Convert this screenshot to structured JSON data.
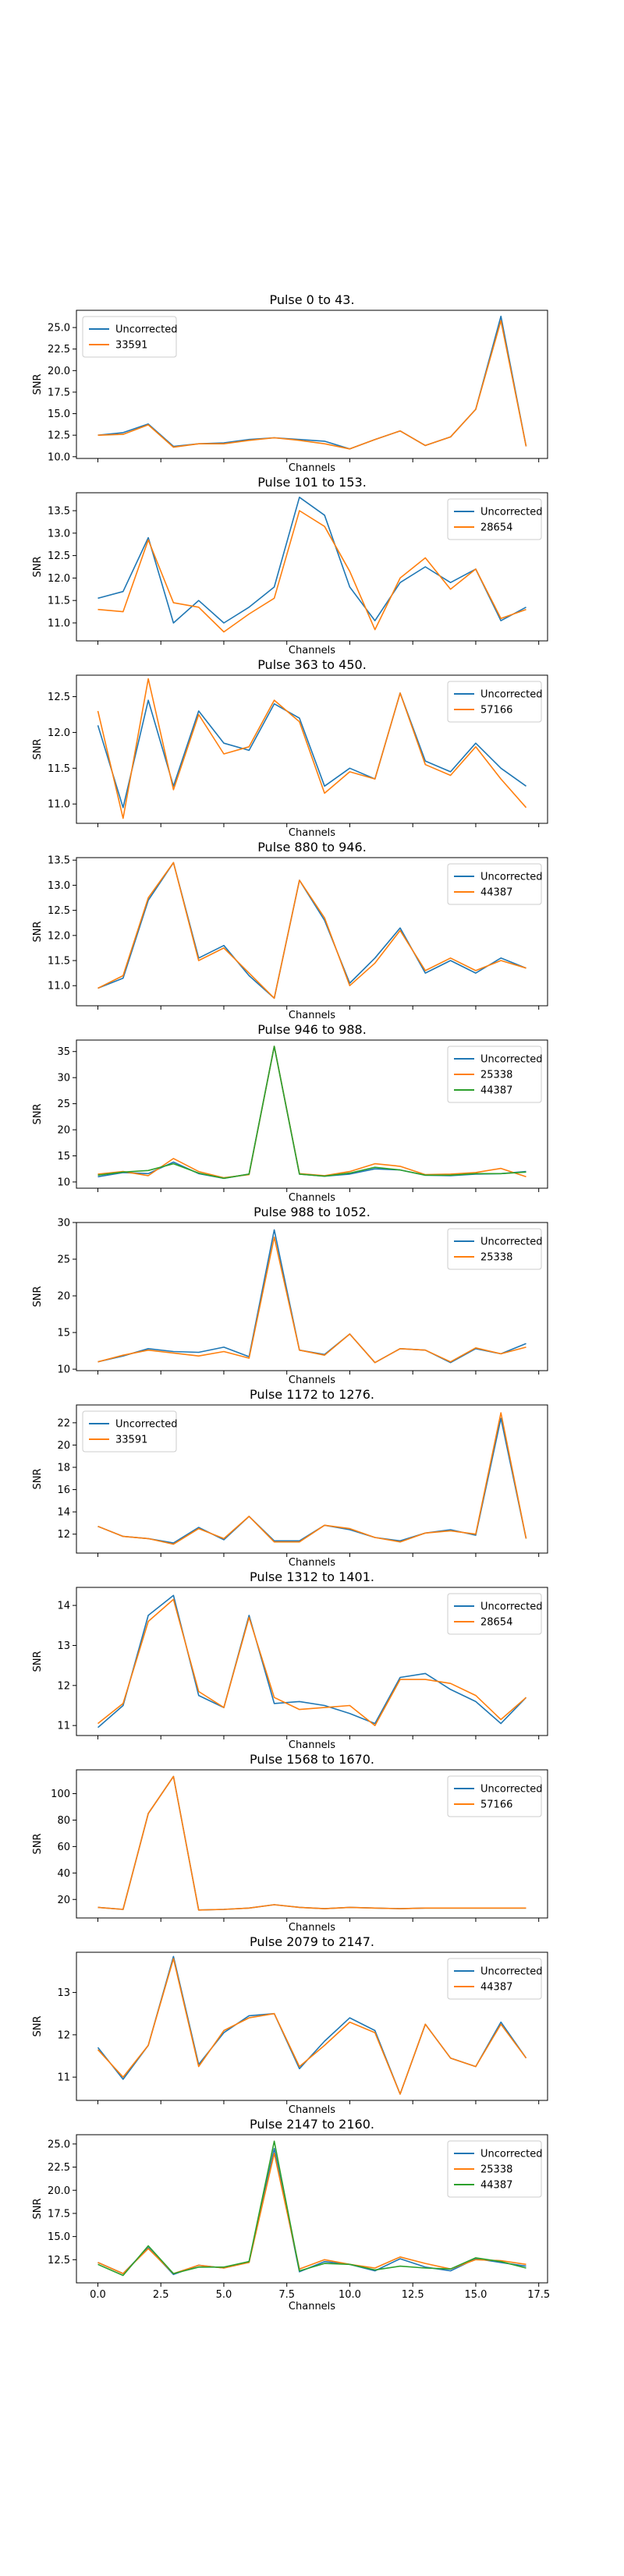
{
  "colors": {
    "uncorrected": "#1f77b4",
    "orange": "#ff7f0e",
    "green": "#2ca02c"
  },
  "chart_data": [
    {
      "type": "line",
      "title": "Pulse 0 to 43.",
      "xlabel": "Channels",
      "ylabel": "SNR",
      "xlim": [
        -0.85,
        17.85
      ],
      "ylim": [
        9.8,
        27.0
      ],
      "yticks": [
        10.0,
        12.5,
        15.0,
        17.5,
        20.0,
        22.5,
        25.0
      ],
      "ytick_labels": [
        "10.0",
        "12.5",
        "15.0",
        "17.5",
        "20.0",
        "22.5",
        "25.0"
      ],
      "xticks": [],
      "xtick_labels": [],
      "legend_position": "upper-left",
      "x": [
        0,
        1,
        2,
        3,
        4,
        5,
        6,
        7,
        8,
        9,
        10,
        11,
        12,
        13,
        14,
        15,
        16,
        17
      ],
      "series": [
        {
          "name": "Uncorrected",
          "color": "#1f77b4",
          "values": [
            12.5,
            12.8,
            13.8,
            11.2,
            11.5,
            11.6,
            12.0,
            12.2,
            12.0,
            11.8,
            10.9,
            12.0,
            13.0,
            11.3,
            12.3,
            15.5,
            26.3,
            11.2
          ]
        },
        {
          "name": "33591",
          "color": "#ff7f0e",
          "values": [
            12.5,
            12.6,
            13.7,
            11.1,
            11.5,
            11.5,
            11.9,
            12.2,
            11.9,
            11.5,
            10.9,
            12.0,
            13.0,
            11.3,
            12.3,
            15.5,
            25.8,
            11.2
          ]
        }
      ]
    },
    {
      "type": "line",
      "title": "Pulse 101 to 153.",
      "xlabel": "Channels",
      "ylabel": "SNR",
      "xlim": [
        -0.85,
        17.85
      ],
      "ylim": [
        10.6,
        13.9
      ],
      "yticks": [
        11.0,
        11.5,
        12.0,
        12.5,
        13.0,
        13.5
      ],
      "ytick_labels": [
        "11.0",
        "11.5",
        "12.0",
        "12.5",
        "13.0",
        "13.5"
      ],
      "xticks": [],
      "xtick_labels": [],
      "legend_position": "upper-right",
      "x": [
        0,
        1,
        2,
        3,
        4,
        5,
        6,
        7,
        8,
        9,
        10,
        11,
        12,
        13,
        14,
        15,
        16,
        17
      ],
      "series": [
        {
          "name": "Uncorrected",
          "color": "#1f77b4",
          "values": [
            11.55,
            11.7,
            12.9,
            11.0,
            11.5,
            11.0,
            11.35,
            11.8,
            13.8,
            13.4,
            11.8,
            11.05,
            11.9,
            12.25,
            11.9,
            12.2,
            11.05,
            11.35
          ]
        },
        {
          "name": "28654",
          "color": "#ff7f0e",
          "values": [
            11.3,
            11.25,
            12.85,
            11.45,
            11.35,
            10.8,
            11.2,
            11.55,
            13.5,
            13.15,
            12.15,
            10.85,
            12.0,
            12.45,
            11.75,
            12.2,
            11.1,
            11.3
          ]
        }
      ]
    },
    {
      "type": "line",
      "title": "Pulse 363 to 450.",
      "xlabel": "Channels",
      "ylabel": "SNR",
      "xlim": [
        -0.85,
        17.85
      ],
      "ylim": [
        10.73,
        12.8
      ],
      "yticks": [
        11.0,
        11.5,
        12.0,
        12.5
      ],
      "ytick_labels": [
        "11.0",
        "11.5",
        "12.0",
        "12.5"
      ],
      "xticks": [],
      "xtick_labels": [],
      "legend_position": "upper-right",
      "x": [
        0,
        1,
        2,
        3,
        4,
        5,
        6,
        7,
        8,
        9,
        10,
        11,
        12,
        13,
        14,
        15,
        16,
        17
      ],
      "series": [
        {
          "name": "Uncorrected",
          "color": "#1f77b4",
          "values": [
            12.1,
            10.95,
            12.45,
            11.25,
            12.3,
            11.85,
            11.75,
            12.4,
            12.2,
            11.25,
            11.5,
            11.35,
            12.55,
            11.6,
            11.45,
            11.85,
            11.5,
            11.25
          ]
        },
        {
          "name": "57166",
          "color": "#ff7f0e",
          "values": [
            12.3,
            10.8,
            12.75,
            11.2,
            12.25,
            11.7,
            11.8,
            12.45,
            12.15,
            11.15,
            11.45,
            11.35,
            12.55,
            11.55,
            11.4,
            11.8,
            11.35,
            10.95
          ]
        }
      ]
    },
    {
      "type": "line",
      "title": "Pulse 880 to 946.",
      "xlabel": "Channels",
      "ylabel": "SNR",
      "xlim": [
        -0.85,
        17.85
      ],
      "ylim": [
        10.6,
        13.55
      ],
      "yticks": [
        11.0,
        11.5,
        12.0,
        12.5,
        13.0,
        13.5
      ],
      "ytick_labels": [
        "11.0",
        "11.5",
        "12.0",
        "12.5",
        "13.0",
        "13.5"
      ],
      "xticks": [],
      "xtick_labels": [],
      "legend_position": "upper-right",
      "x": [
        0,
        1,
        2,
        3,
        4,
        5,
        6,
        7,
        8,
        9,
        10,
        11,
        12,
        13,
        14,
        15,
        16,
        17
      ],
      "series": [
        {
          "name": "Uncorrected",
          "color": "#1f77b4",
          "values": [
            10.95,
            11.15,
            12.7,
            13.45,
            11.55,
            11.8,
            11.2,
            10.75,
            13.1,
            12.3,
            11.05,
            11.55,
            12.15,
            11.25,
            11.5,
            11.25,
            11.55,
            11.35
          ]
        },
        {
          "name": "44387",
          "color": "#ff7f0e",
          "values": [
            10.95,
            11.2,
            12.75,
            13.45,
            11.5,
            11.75,
            11.25,
            10.75,
            13.1,
            12.35,
            11.0,
            11.45,
            12.1,
            11.3,
            11.55,
            11.3,
            11.5,
            11.35
          ]
        }
      ]
    },
    {
      "type": "line",
      "title": "Pulse 946 to 988.",
      "xlabel": "Channels",
      "ylabel": "SNR",
      "xlim": [
        -0.85,
        17.85
      ],
      "ylim": [
        8.8,
        37.2
      ],
      "yticks": [
        10,
        15,
        20,
        25,
        30,
        35
      ],
      "ytick_labels": [
        "10",
        "15",
        "20",
        "25",
        "30",
        "35"
      ],
      "xticks": [],
      "xtick_labels": [],
      "legend_position": "upper-right",
      "x": [
        0,
        1,
        2,
        3,
        4,
        5,
        6,
        7,
        8,
        9,
        10,
        11,
        12,
        13,
        14,
        15,
        16,
        17
      ],
      "series": [
        {
          "name": "Uncorrected",
          "color": "#1f77b4",
          "values": [
            11.0,
            11.8,
            11.6,
            13.8,
            11.6,
            10.7,
            11.5,
            36.0,
            11.5,
            11.1,
            11.5,
            12.5,
            12.3,
            11.3,
            11.2,
            11.5,
            11.6,
            12.0
          ]
        },
        {
          "name": "25338",
          "color": "#ff7f0e",
          "values": [
            11.5,
            12.0,
            11.2,
            14.5,
            12.0,
            10.8,
            11.4,
            36.0,
            11.6,
            11.2,
            12.0,
            13.5,
            13.0,
            11.4,
            11.5,
            11.8,
            12.6,
            11.0
          ]
        },
        {
          "name": "44387",
          "color": "#2ca02c",
          "values": [
            11.3,
            11.9,
            12.2,
            13.5,
            11.7,
            10.7,
            11.5,
            36.0,
            11.5,
            11.1,
            11.7,
            12.8,
            12.3,
            11.3,
            11.3,
            11.6,
            11.6,
            11.9
          ]
        }
      ]
    },
    {
      "type": "line",
      "title": "Pulse 988 to 1052.",
      "xlabel": "Channels",
      "ylabel": "SNR",
      "xlim": [
        -0.85,
        17.85
      ],
      "ylim": [
        9.8,
        30.0
      ],
      "yticks": [
        10,
        15,
        20,
        25,
        30
      ],
      "ytick_labels": [
        "10",
        "15",
        "20",
        "25",
        "30"
      ],
      "xticks": [],
      "xtick_labels": [],
      "legend_position": "upper-right",
      "x": [
        0,
        1,
        2,
        3,
        4,
        5,
        6,
        7,
        8,
        9,
        10,
        11,
        12,
        13,
        14,
        15,
        16,
        17
      ],
      "series": [
        {
          "name": "Uncorrected",
          "color": "#1f77b4",
          "values": [
            11.0,
            11.8,
            12.8,
            12.4,
            12.3,
            13.0,
            11.7,
            29.0,
            12.6,
            12.0,
            14.8,
            10.9,
            12.8,
            12.6,
            10.9,
            12.8,
            12.1,
            13.5
          ]
        },
        {
          "name": "25338",
          "color": "#ff7f0e",
          "values": [
            11.0,
            11.9,
            12.6,
            12.2,
            11.8,
            12.4,
            11.5,
            28.0,
            12.6,
            11.9,
            14.8,
            10.9,
            12.8,
            12.6,
            11.0,
            12.9,
            12.1,
            13.0
          ]
        }
      ]
    },
    {
      "type": "line",
      "title": "Pulse 1172 to 1276.",
      "xlabel": "Channels",
      "ylabel": "SNR",
      "xlim": [
        -0.85,
        17.85
      ],
      "ylim": [
        10.3,
        23.6
      ],
      "yticks": [
        12,
        14,
        16,
        18,
        20,
        22
      ],
      "ytick_labels": [
        "12",
        "14",
        "16",
        "18",
        "20",
        "22"
      ],
      "xticks": [],
      "xtick_labels": [],
      "legend_position": "upper-left",
      "x": [
        0,
        1,
        2,
        3,
        4,
        5,
        6,
        7,
        8,
        9,
        10,
        11,
        12,
        13,
        14,
        15,
        16,
        17
      ],
      "series": [
        {
          "name": "Uncorrected",
          "color": "#1f77b4",
          "values": [
            12.7,
            11.8,
            11.6,
            11.2,
            12.6,
            11.5,
            13.6,
            11.4,
            11.4,
            12.8,
            12.4,
            11.7,
            11.4,
            12.1,
            12.4,
            11.9,
            22.4,
            11.6
          ]
        },
        {
          "name": "33591",
          "color": "#ff7f0e",
          "values": [
            12.7,
            11.8,
            11.6,
            11.1,
            12.5,
            11.6,
            13.6,
            11.3,
            11.3,
            12.8,
            12.5,
            11.7,
            11.3,
            12.1,
            12.3,
            12.0,
            22.9,
            11.6
          ]
        }
      ]
    },
    {
      "type": "line",
      "title": "Pulse 1312 to 1401.",
      "xlabel": "Channels",
      "ylabel": "SNR",
      "xlim": [
        -0.85,
        17.85
      ],
      "ylim": [
        10.75,
        14.45
      ],
      "yticks": [
        11,
        12,
        13,
        14
      ],
      "ytick_labels": [
        "11",
        "12",
        "13",
        "14"
      ],
      "xticks": [],
      "xtick_labels": [],
      "legend_position": "upper-right",
      "x": [
        0,
        1,
        2,
        3,
        4,
        5,
        6,
        7,
        8,
        9,
        10,
        11,
        12,
        13,
        14,
        15,
        16,
        17
      ],
      "series": [
        {
          "name": "Uncorrected",
          "color": "#1f77b4",
          "values": [
            10.95,
            11.5,
            13.75,
            14.25,
            11.75,
            11.45,
            13.75,
            11.55,
            11.6,
            11.5,
            11.3,
            11.05,
            12.2,
            12.3,
            11.9,
            11.6,
            11.05,
            11.7
          ]
        },
        {
          "name": "28654",
          "color": "#ff7f0e",
          "values": [
            11.05,
            11.55,
            13.6,
            14.15,
            11.85,
            11.45,
            13.7,
            11.7,
            11.4,
            11.45,
            11.5,
            11.0,
            12.15,
            12.15,
            12.05,
            11.75,
            11.15,
            11.7
          ]
        }
      ]
    },
    {
      "type": "line",
      "title": "Pulse 1568 to 1670.",
      "xlabel": "Channels",
      "ylabel": "SNR",
      "xlim": [
        -0.85,
        17.85
      ],
      "ylim": [
        6.0,
        118.0
      ],
      "yticks": [
        20,
        40,
        60,
        80,
        100
      ],
      "ytick_labels": [
        "20",
        "40",
        "60",
        "80",
        "100"
      ],
      "xticks": [],
      "xtick_labels": [],
      "legend_position": "upper-right",
      "x": [
        0,
        1,
        2,
        3,
        4,
        5,
        6,
        7,
        8,
        9,
        10,
        11,
        12,
        13,
        14,
        15,
        16,
        17
      ],
      "series": [
        {
          "name": "Uncorrected",
          "color": "#1f77b4",
          "values": [
            14,
            12.5,
            85,
            113,
            12,
            12.5,
            13.5,
            16,
            14,
            13,
            14,
            13.5,
            13,
            13.5,
            13.5,
            13.5,
            13.5,
            13.5
          ]
        },
        {
          "name": "57166",
          "color": "#ff7f0e",
          "values": [
            14,
            12.5,
            85,
            113,
            12,
            12.5,
            13.5,
            16,
            14,
            13,
            14,
            13.5,
            13,
            13.5,
            13.5,
            13.5,
            13.5,
            13.5
          ]
        }
      ]
    },
    {
      "type": "line",
      "title": "Pulse 2079 to 2147.",
      "xlabel": "Channels",
      "ylabel": "SNR",
      "xlim": [
        -0.85,
        17.85
      ],
      "ylim": [
        10.45,
        13.95
      ],
      "yticks": [
        11,
        12,
        13
      ],
      "ytick_labels": [
        "11",
        "12",
        "13"
      ],
      "xticks": [],
      "xtick_labels": [],
      "legend_position": "upper-right",
      "x": [
        0,
        1,
        2,
        3,
        4,
        5,
        6,
        7,
        8,
        9,
        10,
        11,
        12,
        13,
        14,
        15,
        16,
        17
      ],
      "series": [
        {
          "name": "Uncorrected",
          "color": "#1f77b4",
          "values": [
            11.7,
            10.95,
            11.75,
            13.85,
            11.3,
            12.05,
            12.45,
            12.5,
            11.2,
            11.85,
            12.4,
            12.1,
            10.6,
            12.25,
            11.45,
            11.25,
            12.3,
            11.45
          ]
        },
        {
          "name": "44387",
          "color": "#ff7f0e",
          "values": [
            11.65,
            11.0,
            11.75,
            13.8,
            11.25,
            12.1,
            12.4,
            12.5,
            11.25,
            11.75,
            12.3,
            12.05,
            10.6,
            12.25,
            11.45,
            11.25,
            12.25,
            11.45
          ]
        }
      ]
    },
    {
      "type": "line",
      "title": "Pulse 2147 to 2160.",
      "xlabel": "Channels",
      "ylabel": "SNR",
      "xlim": [
        -0.85,
        17.85
      ],
      "ylim": [
        10.0,
        26.0
      ],
      "yticks": [
        12.5,
        15.0,
        17.5,
        20.0,
        22.5,
        25.0
      ],
      "ytick_labels": [
        "12.5",
        "15.0",
        "17.5",
        "20.0",
        "22.5",
        "25.0"
      ],
      "xticks": [
        0.0,
        2.5,
        5.0,
        7.5,
        10.0,
        12.5,
        15.0,
        17.5
      ],
      "xtick_labels": [
        "0.0",
        "2.5",
        "5.0",
        "7.5",
        "10.0",
        "12.5",
        "15.0",
        "17.5"
      ],
      "legend_position": "upper-right",
      "x": [
        0,
        1,
        2,
        3,
        4,
        5,
        6,
        7,
        8,
        9,
        10,
        11,
        12,
        13,
        14,
        15,
        16,
        17
      ],
      "series": [
        {
          "name": "Uncorrected",
          "color": "#1f77b4",
          "values": [
            12.2,
            11.0,
            13.8,
            10.9,
            11.9,
            11.6,
            12.3,
            24.5,
            11.2,
            12.3,
            12.0,
            11.3,
            12.6,
            11.7,
            11.3,
            12.6,
            12.2,
            11.8
          ]
        },
        {
          "name": "25338",
          "color": "#ff7f0e",
          "values": [
            12.2,
            11.0,
            13.7,
            11.0,
            11.9,
            11.6,
            12.2,
            24.0,
            11.5,
            12.5,
            12.0,
            11.6,
            12.8,
            12.1,
            11.5,
            12.5,
            12.4,
            12.0
          ]
        },
        {
          "name": "44387",
          "color": "#2ca02c",
          "values": [
            12.0,
            10.8,
            14.0,
            11.0,
            11.7,
            11.7,
            12.3,
            25.3,
            11.3,
            12.1,
            12.0,
            11.4,
            11.8,
            11.6,
            11.5,
            12.7,
            12.3,
            11.6
          ]
        }
      ]
    }
  ]
}
